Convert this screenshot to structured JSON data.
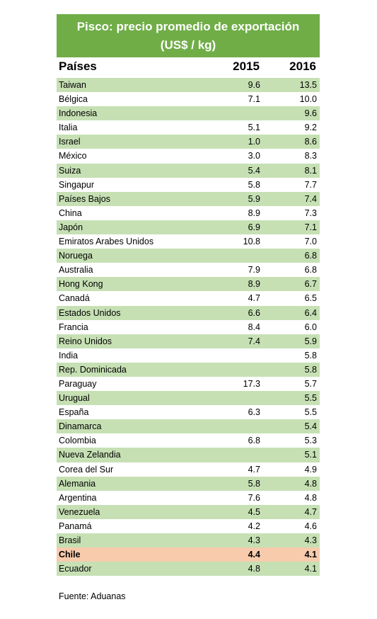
{
  "title_lines": [
    "Pisco: precio promedio de exportación",
    "(US$ / kg)"
  ],
  "table": {
    "header": [
      "Países",
      "2015",
      "2016"
    ],
    "highlighted_rows": [
      33
    ],
    "rows": [
      [
        "Taiwan",
        "9.6",
        "13.5"
      ],
      [
        "Bélgica",
        "7.1",
        "10.0"
      ],
      [
        "Indonesia",
        null,
        "9.6"
      ],
      [
        "Italia",
        "5.1",
        "9.2"
      ],
      [
        "Israel",
        "1.0",
        "8.6"
      ],
      [
        "México",
        "3.0",
        "8.3"
      ],
      [
        "Suiza",
        "5.4",
        "8.1"
      ],
      [
        "Singapur",
        "5.8",
        "7.7"
      ],
      [
        "Países Bajos",
        "5.9",
        "7.4"
      ],
      [
        "China",
        "8.9",
        "7.3"
      ],
      [
        "Japón",
        "6.9",
        "7.1"
      ],
      [
        "Emiratos Arabes Unidos",
        "10.8",
        "7.0"
      ],
      [
        "Noruega",
        null,
        "6.8"
      ],
      [
        "Australia",
        "7.9",
        "6.8"
      ],
      [
        "Hong Kong",
        "8.9",
        "6.7"
      ],
      [
        "Canadá",
        "4.7",
        "6.5"
      ],
      [
        "Estados Unidos",
        "6.6",
        "6.4"
      ],
      [
        "Francia",
        "8.4",
        "6.0"
      ],
      [
        "Reino Unidos",
        "7.4",
        "5.9"
      ],
      [
        "India",
        null,
        "5.8"
      ],
      [
        "Rep. Dominicada",
        null,
        "5.8"
      ],
      [
        "Paraguay",
        "17.3",
        "5.7"
      ],
      [
        "Urugual",
        null,
        "5.5"
      ],
      [
        "España",
        "6.3",
        "5.5"
      ],
      [
        "Dinamarca",
        null,
        "5.4"
      ],
      [
        "Colombia",
        "6.8",
        "5.3"
      ],
      [
        "Nueva Zelandia",
        null,
        "5.1"
      ],
      [
        "Corea del Sur",
        "4.7",
        "4.9"
      ],
      [
        "Alemania",
        "5.8",
        "4.8"
      ],
      [
        "Argentina",
        "7.6",
        "4.8"
      ],
      [
        "Venezuela",
        "4.5",
        "4.7"
      ],
      [
        "Panamá",
        "4.2",
        "4.6"
      ],
      [
        "Brasil",
        "4.3",
        "4.3"
      ],
      [
        "Chile",
        "4.4",
        "4.1"
      ],
      [
        "Ecuador",
        "4.8",
        "4.1"
      ]
    ]
  },
  "footer": "Fuente: Aduanas"
}
